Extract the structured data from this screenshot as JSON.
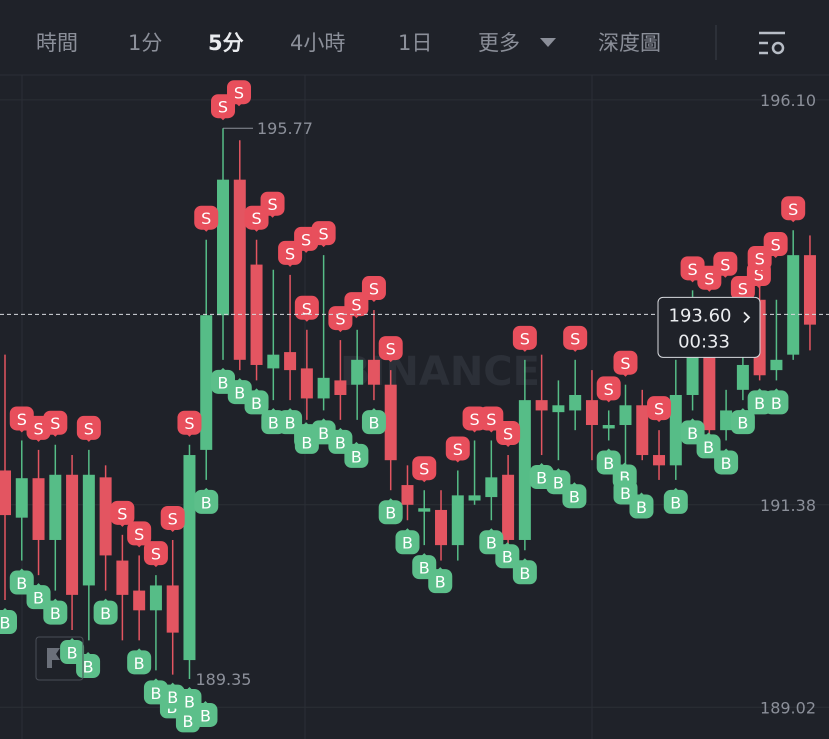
{
  "toolbar": {
    "items": [
      "時間",
      "1分",
      "5分",
      "4小時",
      "1日",
      "更多",
      "深度圖"
    ],
    "selected": 2
  },
  "chart_data": {
    "type": "candlestick",
    "watermark": "BINANCE",
    "up_color": "#56bd87",
    "down_color": "#e35561",
    "ylim": [
      188.65,
      196.39
    ],
    "yticks": [
      {
        "value": 196.1,
        "label": "196.10"
      },
      191.38,
      189.02
    ],
    "grid": true,
    "open": [
      191.78,
      191.23,
      191.69,
      190.97,
      191.73,
      190.44,
      191.7,
      190.73,
      190.38,
      190.15,
      190.44,
      189.57,
      192.02,
      193.59,
      195.17,
      194.18,
      192.97,
      193.16,
      192.97,
      192.62,
      192.83,
      192.78,
      193.07,
      192.78,
      191.61,
      191.3,
      191.32,
      190.91,
      191.43,
      191.47,
      191.73,
      190.97,
      192.6,
      192.46,
      192.48,
      192.6,
      192.27,
      192.31,
      192.54,
      191.96,
      191.84,
      192.66,
      193.42,
      192.25,
      192.72,
      193.77,
      192.95,
      193.13,
      194.29
    ],
    "high": [
      193.13,
      192.13,
      192.02,
      192.08,
      191.96,
      192.02,
      191.84,
      191.03,
      190.79,
      190.56,
      190.97,
      192.08,
      194.47,
      195.77,
      195.63,
      194.47,
      194.12,
      194.06,
      193.42,
      194.29,
      193.3,
      193.42,
      193.65,
      192.95,
      191.84,
      191.55,
      191.55,
      191.78,
      192.13,
      192.13,
      191.96,
      193.07,
      193.13,
      192.83,
      193.07,
      192.95,
      192.48,
      192.78,
      192.72,
      192.25,
      193.07,
      193.88,
      193.77,
      192.72,
      193.65,
      194.0,
      193.77,
      194.58,
      194.52
    ],
    "low": [
      190.27,
      190.73,
      190.56,
      190.38,
      189.92,
      189.8,
      190.38,
      189.8,
      189.8,
      189.45,
      189.4,
      189.35,
      191.67,
      193.07,
      192.95,
      192.83,
      192.6,
      192.6,
      192.37,
      192.48,
      192.37,
      192.37,
      192.6,
      191.55,
      191.2,
      190.91,
      190.73,
      190.73,
      191.38,
      191.2,
      190.85,
      190.85,
      191.96,
      191.9,
      192.25,
      191.9,
      192.13,
      191.78,
      191.9,
      191.67,
      191.67,
      192.48,
      192.13,
      192.13,
      192.6,
      192.83,
      192.83,
      193.07,
      193.18
    ],
    "close": [
      191.26,
      191.69,
      190.97,
      191.73,
      190.33,
      191.73,
      190.79,
      190.33,
      190.15,
      190.44,
      189.89,
      191.96,
      193.59,
      195.17,
      193.07,
      193.01,
      193.13,
      192.95,
      192.62,
      192.86,
      192.66,
      193.07,
      192.78,
      191.9,
      191.38,
      191.34,
      190.91,
      191.49,
      191.49,
      191.7,
      190.97,
      192.6,
      192.48,
      192.54,
      192.66,
      192.31,
      192.31,
      192.54,
      191.96,
      191.84,
      192.66,
      193.53,
      192.25,
      192.48,
      193.01,
      192.89,
      193.07,
      194.29,
      193.48
    ],
    "high_label": 195.77,
    "low_label": 189.35,
    "current_price": {
      "value": 193.6,
      "label": "193.60"
    },
    "countdown": "00:33",
    "sell_markers": {
      "label": "S",
      "color": "#e84f5c",
      "candles": [
        1,
        2,
        3,
        5,
        7,
        8,
        9,
        10,
        11,
        12,
        13,
        13,
        15,
        15,
        17,
        17,
        18,
        19,
        20,
        20,
        22,
        23,
        25,
        27,
        28,
        29,
        30,
        31,
        34,
        36,
        37,
        39,
        41,
        42,
        42,
        44,
        44,
        45,
        45,
        47
      ]
    },
    "buy_markers": {
      "label": "B",
      "color": "#5cbf8a",
      "candles": [
        0,
        1,
        2,
        3,
        4,
        4,
        6,
        8,
        9,
        9,
        9,
        10,
        11,
        11,
        12,
        13,
        14,
        15,
        16,
        17,
        17,
        18,
        19,
        20,
        20,
        22,
        23,
        24,
        25,
        25,
        29,
        29,
        31,
        32,
        33,
        33,
        36,
        36,
        37,
        37,
        40,
        41,
        41,
        43,
        44,
        45,
        46
      ]
    }
  }
}
